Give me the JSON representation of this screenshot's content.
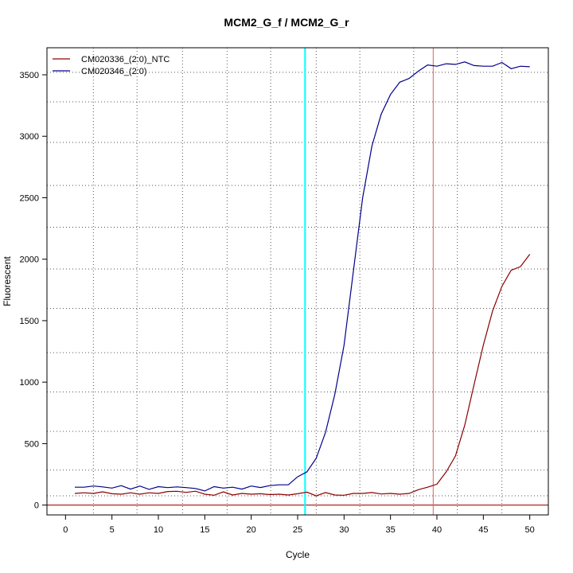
{
  "chart_data": {
    "type": "line",
    "title": "MCM2_G_f / MCM2_G_r",
    "xlabel": "Cycle",
    "ylabel": "Fluorescent",
    "xlim": [
      -2,
      52
    ],
    "ylim": [
      -80,
      3720
    ],
    "x_ticks": [
      0,
      5,
      10,
      15,
      20,
      25,
      30,
      35,
      40,
      45,
      50
    ],
    "y_ticks": [
      0,
      500,
      1000,
      1500,
      2000,
      2500,
      3000,
      3500
    ],
    "grid": true,
    "legend_position": "top-left",
    "x": [
      1,
      2,
      3,
      4,
      5,
      6,
      7,
      8,
      9,
      10,
      11,
      12,
      13,
      14,
      15,
      16,
      17,
      18,
      19,
      20,
      21,
      22,
      23,
      24,
      25,
      26,
      27,
      28,
      29,
      30,
      31,
      32,
      33,
      34,
      35,
      36,
      37,
      38,
      39,
      40,
      41,
      42,
      43,
      44,
      45,
      46,
      47,
      48,
      49,
      50
    ],
    "series": [
      {
        "name": "CM020336_(2:0)_NTC",
        "color": "#8b0000",
        "values": [
          95,
          100,
          95,
          108,
          92,
          88,
          100,
          88,
          100,
          95,
          110,
          112,
          103,
          113,
          88,
          80,
          108,
          82,
          95,
          88,
          92,
          85,
          88,
          82,
          92,
          105,
          75,
          102,
          82,
          80,
          95,
          95,
          102,
          90,
          95,
          88,
          95,
          125,
          145,
          170,
          270,
          400,
          650,
          980,
          1300,
          1580,
          1780,
          1910,
          1940,
          2040
        ]
      },
      {
        "name": "CM020346_(2:0)",
        "color": "#00008b",
        "values": [
          145,
          145,
          155,
          148,
          138,
          158,
          130,
          155,
          128,
          150,
          142,
          148,
          142,
          135,
          115,
          150,
          138,
          145,
          130,
          155,
          143,
          158,
          165,
          165,
          230,
          270,
          380,
          590,
          900,
          1300,
          1900,
          2500,
          2920,
          3180,
          3340,
          3440,
          3470,
          3530,
          3580,
          3570,
          3590,
          3585,
          3605,
          3575,
          3570,
          3570,
          3600,
          3550,
          3570,
          3565
        ]
      }
    ],
    "vertical_lines": [
      {
        "x": 25.8,
        "color": "#00ffff"
      },
      {
        "x": 39.6,
        "color": "#e06060"
      }
    ],
    "horizontal_lines": [
      {
        "y": 0,
        "color": "#b22222"
      }
    ],
    "dotted_grid_x": [
      3,
      7.7,
      12.6,
      17.4,
      22.1,
      27.0,
      31.7,
      37.5,
      42.2,
      47.0
    ],
    "dotted_grid_y": [
      75,
      285,
      600,
      920,
      1240,
      1600,
      1920,
      2260,
      2600,
      2950,
      3280,
      3520
    ]
  }
}
